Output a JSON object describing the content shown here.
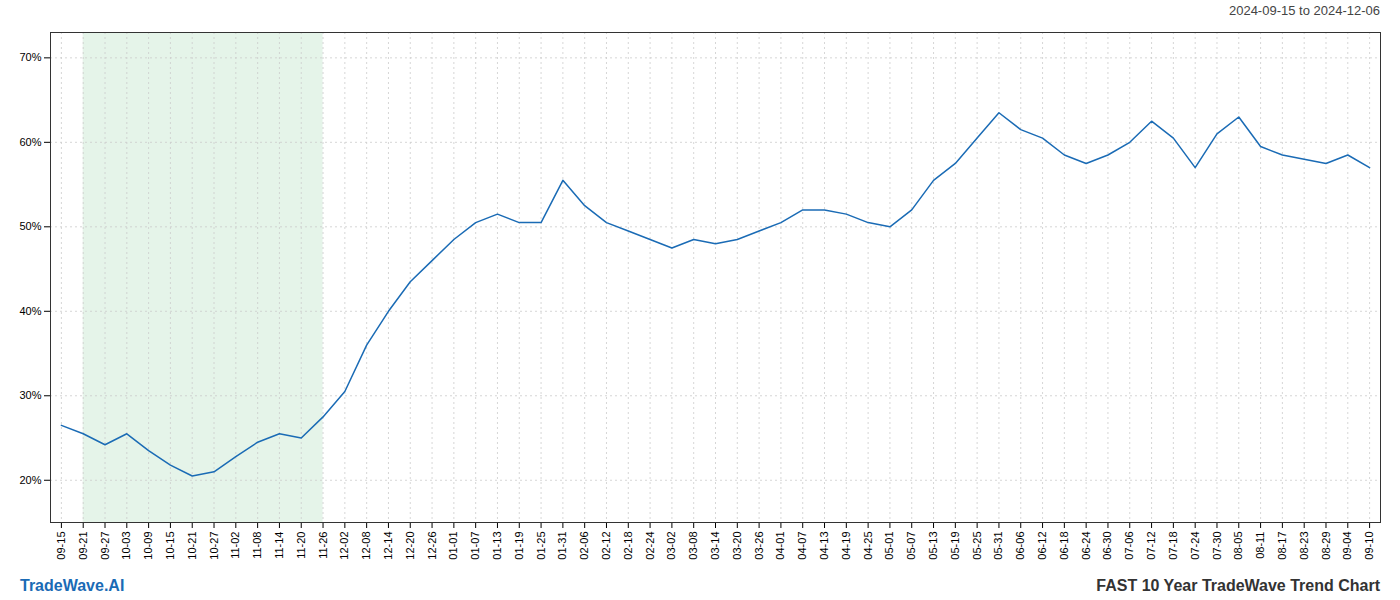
{
  "chart_data": {
    "type": "line",
    "title": "FAST 10 Year TradeWave Trend Chart",
    "subtitle": "2024-09-15 to 2024-12-06",
    "annotations": [
      "TradeWave.AI"
    ],
    "categories": [
      "09-15",
      "09-21",
      "09-27",
      "10-03",
      "10-09",
      "10-15",
      "10-21",
      "10-27",
      "11-02",
      "11-08",
      "11-14",
      "11-20",
      "11-26",
      "12-02",
      "12-08",
      "12-14",
      "12-20",
      "12-26",
      "01-01",
      "01-07",
      "01-13",
      "01-19",
      "01-25",
      "01-31",
      "02-06",
      "02-12",
      "02-18",
      "02-24",
      "03-02",
      "03-08",
      "03-14",
      "03-20",
      "03-26",
      "04-01",
      "04-07",
      "04-13",
      "04-19",
      "04-25",
      "05-01",
      "05-07",
      "05-13",
      "05-19",
      "05-25",
      "05-31",
      "06-06",
      "06-12",
      "06-18",
      "06-24",
      "06-30",
      "07-06",
      "07-12",
      "07-18",
      "07-24",
      "07-30",
      "08-05",
      "08-11",
      "08-17",
      "08-23",
      "08-29",
      "09-04",
      "09-10"
    ],
    "values": [
      26.5,
      25.5,
      24.2,
      25.5,
      23.5,
      21.8,
      20.5,
      21.0,
      22.8,
      24.5,
      25.5,
      25.0,
      27.5,
      30.5,
      36.0,
      40.0,
      43.5,
      46.0,
      48.5,
      50.5,
      51.5,
      50.5,
      50.5,
      55.5,
      52.5,
      50.5,
      49.5,
      48.5,
      47.5,
      48.5,
      48.0,
      48.5,
      49.5,
      50.5,
      52.0,
      52.0,
      51.5,
      50.5,
      50.0,
      52.0,
      55.5,
      57.5,
      60.5,
      63.5,
      61.5,
      60.5,
      58.5,
      57.5,
      58.5,
      60.0,
      62.5,
      60.5,
      57.0,
      61.0,
      63.0,
      59.5,
      58.5,
      58.0,
      57.5,
      58.5,
      57.0
    ],
    "color": "#1a6bb5",
    "shaded_region": {
      "start": "09-21",
      "end": "11-26",
      "color": "#d4edda"
    },
    "ylim": [
      15,
      73
    ],
    "yticks": [
      {
        "value": 20,
        "label": "20%"
      },
      {
        "value": 30,
        "label": "30%"
      },
      {
        "value": 40,
        "label": "40%"
      },
      {
        "value": 50,
        "label": "50%"
      },
      {
        "value": 60,
        "label": "60%"
      },
      {
        "value": 70,
        "label": "70%"
      }
    ],
    "grid": true
  }
}
